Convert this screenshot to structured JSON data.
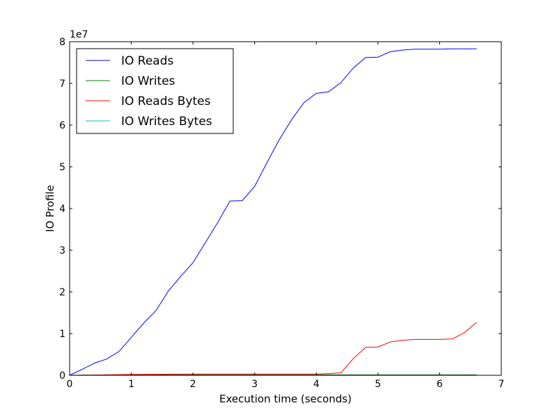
{
  "chart_data": {
    "type": "line",
    "xlabel": "Execution time (seconds)",
    "ylabel": "IO Profile",
    "y_offset_label": "1e7",
    "xlim": [
      0,
      7
    ],
    "ylim": [
      0,
      8
    ],
    "x_ticks": [
      "0",
      "1",
      "2",
      "3",
      "4",
      "5",
      "6",
      "7"
    ],
    "y_ticks": [
      "0",
      "1",
      "2",
      "3",
      "4",
      "5",
      "6",
      "7",
      "8"
    ],
    "grid": false,
    "legend_position": "upper-left",
    "series": [
      {
        "name": "IO Reads",
        "color": "#0000ff",
        "x": [
          0,
          0.2,
          0.4,
          0.6,
          0.8,
          1.0,
          1.2,
          1.4,
          1.6,
          1.8,
          2.0,
          2.2,
          2.4,
          2.6,
          2.8,
          3.0,
          3.2,
          3.4,
          3.6,
          3.8,
          4.0,
          4.2,
          4.4,
          4.6,
          4.8,
          5.0,
          5.2,
          5.4,
          5.6,
          5.8,
          6.0,
          6.2,
          6.4,
          6.6
        ],
        "y": [
          0,
          0.14,
          0.29,
          0.39,
          0.57,
          0.91,
          1.25,
          1.55,
          2.02,
          2.37,
          2.7,
          3.18,
          3.66,
          4.18,
          4.19,
          4.53,
          5.1,
          5.65,
          6.13,
          6.54,
          6.76,
          6.8,
          7.02,
          7.37,
          7.62,
          7.63,
          7.76,
          7.8,
          7.82,
          7.82,
          7.82,
          7.83,
          7.83,
          7.83
        ]
      },
      {
        "name": "IO Writes",
        "color": "#008000",
        "x": [
          0,
          0.6,
          1.0,
          2.0,
          3.0,
          4.0,
          5.0,
          6.0,
          6.6
        ],
        "y": [
          0,
          0.01,
          0.01,
          0.01,
          0.01,
          0.01,
          0.01,
          0.01,
          0.01
        ]
      },
      {
        "name": "IO Reads Bytes",
        "color": "#ff0000",
        "x": [
          0,
          0.6,
          1.0,
          2.0,
          3.0,
          4.0,
          4.2,
          4.4,
          4.6,
          4.8,
          5.0,
          5.2,
          5.4,
          5.6,
          5.8,
          6.0,
          6.2,
          6.4,
          6.6
        ],
        "y": [
          0,
          0.01,
          0.02,
          0.03,
          0.03,
          0.03,
          0.04,
          0.06,
          0.4,
          0.67,
          0.68,
          0.8,
          0.84,
          0.86,
          0.86,
          0.86,
          0.87,
          1.02,
          1.27
        ]
      },
      {
        "name": "IO Writes Bytes",
        "color": "#00bfbf",
        "x": [
          0,
          1.0,
          2.0,
          3.0,
          4.0,
          5.0,
          6.0,
          6.6
        ],
        "y": [
          0,
          0,
          0,
          0,
          0,
          0,
          0,
          0
        ]
      }
    ]
  }
}
